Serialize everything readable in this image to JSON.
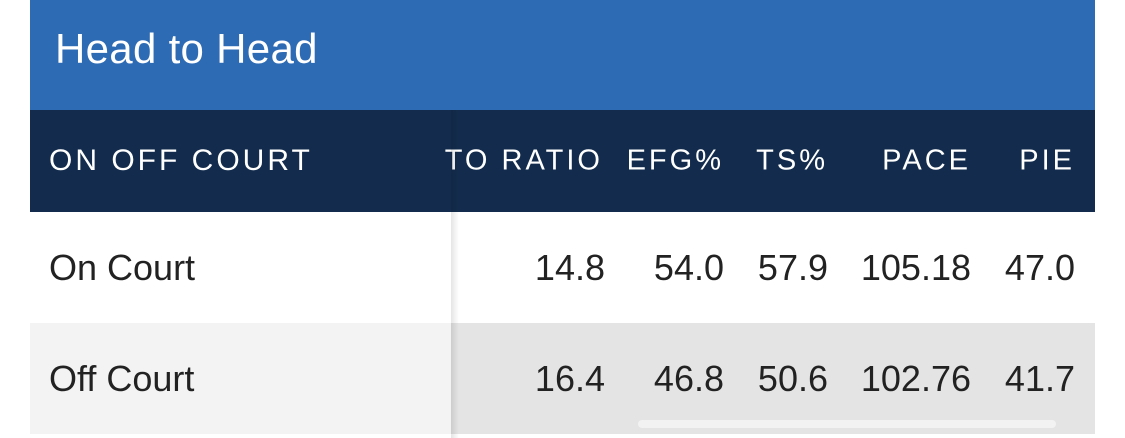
{
  "header": {
    "title": "Head to Head"
  },
  "table": {
    "columns": {
      "label": "ON OFF COURT",
      "to_ratio": "TO RATIO",
      "efg": "EFG%",
      "ts": "TS%",
      "pace": "PACE",
      "pie": "PIE"
    },
    "rows": [
      {
        "label": "On Court",
        "to_ratio": "14.8",
        "efg": "54.0",
        "ts": "57.9",
        "pace": "105.18",
        "pie": "47.0"
      },
      {
        "label": "Off Court",
        "to_ratio": "16.4",
        "efg": "46.8",
        "ts": "50.6",
        "pace": "102.76",
        "pie": "41.7"
      }
    ]
  },
  "colors": {
    "title_bar": "#2e6bb5",
    "header_row": "#132c4d",
    "alt_row": "#e4e4e4"
  }
}
